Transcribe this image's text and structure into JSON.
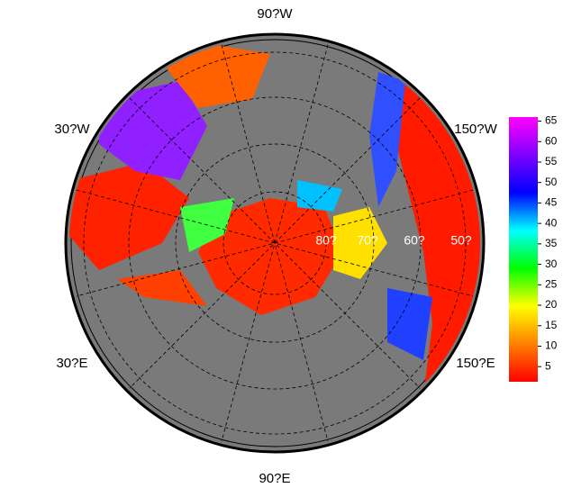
{
  "map": {
    "lon_labels": [
      "90?W",
      "30?W",
      "150?W",
      "30?E",
      "150?E",
      "90?E"
    ],
    "lat_labels": [
      "80?",
      "70?",
      "60?",
      "50?"
    ],
    "colorbar": {
      "lim": [
        1.3,
        66
      ],
      "ticks": [
        5,
        10,
        15,
        20,
        25,
        30,
        35,
        40,
        45,
        50,
        55,
        60,
        65
      ],
      "colors": [
        "#ff0000",
        "#ff8000",
        "#ffff00",
        "#00ff00",
        "#00ffff",
        "#0000ff",
        "#8000ff",
        "#ff00ff"
      ]
    }
  }
}
